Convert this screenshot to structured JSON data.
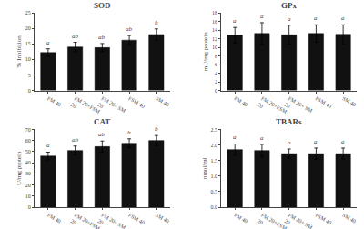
{
  "chart_data": [
    {
      "type": "bar",
      "title": "SOD",
      "ylabel": "% Inhibition",
      "categories": [
        "FM 40",
        "FM 20+FSM\n20",
        "FM 20+ SM\n20",
        "FSM 40",
        "SM 40"
      ],
      "values": [
        12.2,
        14.0,
        13.8,
        16.2,
        18.0
      ],
      "errors": [
        1.2,
        1.5,
        1.3,
        1.5,
        1.8
      ],
      "annotations": [
        "a",
        "ab",
        "ab",
        "ab",
        "b"
      ],
      "color": "#111111",
      "ylim": [
        0,
        25
      ],
      "yticks": [
        0,
        5,
        10,
        15,
        20,
        25
      ],
      "grid": false
    },
    {
      "type": "bar",
      "title": "GPx",
      "ylabel": "mU/mg protein",
      "categories": [
        "FM 40",
        "FM 20+FSM\n20",
        "FM 20+ SM\n20",
        "FSM 40",
        "SM 40"
      ],
      "values": [
        12.8,
        13.2,
        12.9,
        13.2,
        13.0
      ],
      "errors": [
        1.8,
        2.5,
        2.2,
        2.0,
        2.2
      ],
      "annotations": [
        "a",
        "a",
        "a",
        "a",
        "a"
      ],
      "color": "#111111",
      "ylim": [
        0,
        18
      ],
      "yticks": [
        0,
        2,
        4,
        6,
        8,
        10,
        12,
        14,
        16,
        18
      ],
      "grid": false
    },
    {
      "type": "bar",
      "title": "CAT",
      "ylabel": "U/mg protein",
      "categories": [
        "FM 40",
        "FM 20+FSM\n20",
        "FM 20+ SM\n20",
        "FSM 40",
        "SM 40"
      ],
      "values": [
        46.0,
        51.0,
        54.5,
        57.5,
        60.0
      ],
      "errors": [
        3.5,
        4.0,
        5.0,
        4.0,
        4.5
      ],
      "annotations": [
        "a",
        "ab",
        "ab",
        "b",
        "b"
      ],
      "color": "#111111",
      "ylim": [
        0,
        70
      ],
      "yticks": [
        0,
        10,
        20,
        30,
        40,
        50,
        60,
        70
      ],
      "grid": false
    },
    {
      "type": "bar",
      "title": "TBARs",
      "ylabel": "nmol/ml",
      "categories": [
        "FM 40",
        "FM 20+FSM\n20",
        "FM 20+ SM\n20",
        "FSM 40",
        "SM 40"
      ],
      "values": [
        1.85,
        1.82,
        1.72,
        1.72,
        1.72
      ],
      "errors": [
        0.18,
        0.2,
        0.15,
        0.18,
        0.18
      ],
      "annotations": [
        "a",
        "a",
        "a",
        "a",
        "a"
      ],
      "color": "#111111",
      "ylim": [
        0,
        2.5
      ],
      "yticks": [
        {
          "value": 0,
          "label": "0.0"
        },
        0.5,
        {
          "value": 1,
          "label": "1.0"
        },
        1.5,
        {
          "value": 2,
          "label": "2.0"
        },
        2.5
      ],
      "grid": false
    }
  ]
}
